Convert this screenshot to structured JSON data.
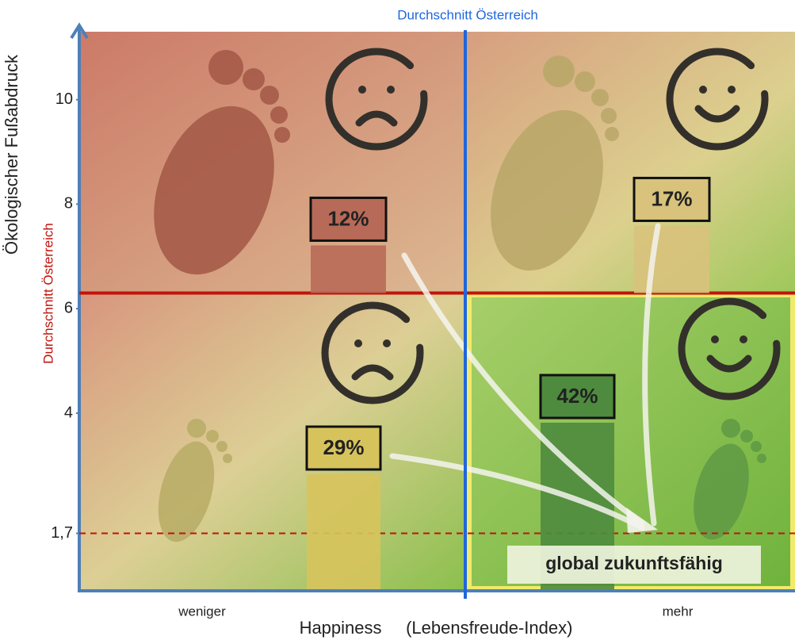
{
  "chart_data": {
    "type": "bar",
    "ylabel": "Ökologischer Fußabdruck",
    "xlabel": "Happiness     (Lebensfreude-Index)",
    "x_left_label": "weniger",
    "x_right_label": "mehr",
    "ylim": [
      0.6,
      11.3
    ],
    "yticks": [
      10,
      8,
      6,
      4,
      {
        "value": 1.7,
        "label": "1,7"
      }
    ],
    "values": [
      12,
      17,
      29,
      42
    ],
    "value_labels": [
      "12%",
      "17%",
      "29%",
      "42%"
    ],
    "colors": [
      "#b86a58",
      "#d8c27c",
      "#d7c35c",
      "#4e8b3e"
    ],
    "h_line": {
      "value": 6.3,
      "label": "Durchschnitt Österreich",
      "color": "#c0140c"
    },
    "v_line": {
      "label": "Durchschnitt Österreich",
      "color": "#1f66dd"
    },
    "target_line": {
      "value": 1.7,
      "label": "global zukunftsfähig",
      "color": "#c0140c"
    }
  }
}
